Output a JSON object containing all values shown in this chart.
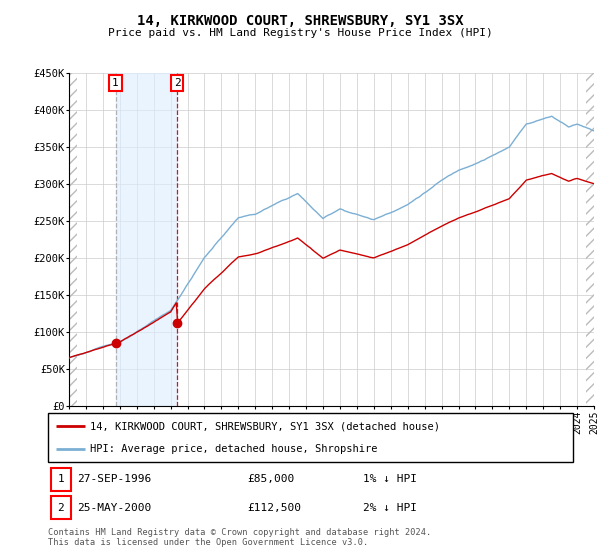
{
  "title1": "14, KIRKWOOD COURT, SHREWSBURY, SY1 3SX",
  "title2": "Price paid vs. HM Land Registry's House Price Index (HPI)",
  "ylim": [
    0,
    450000
  ],
  "yticks": [
    0,
    50000,
    100000,
    150000,
    200000,
    250000,
    300000,
    350000,
    400000,
    450000
  ],
  "ytick_labels": [
    "£0",
    "£50K",
    "£100K",
    "£150K",
    "£200K",
    "£250K",
    "£300K",
    "£350K",
    "£400K",
    "£450K"
  ],
  "sale1_date": 1996.75,
  "sale1_price": 85000,
  "sale2_date": 2000.39,
  "sale2_price": 112500,
  "hpi_line_color": "#7bafd4",
  "price_line_color": "#cc0000",
  "grid_color": "#cccccc",
  "shade_color": "#ddeeff",
  "hatch_color": "#bbbbbb",
  "legend_line1": "14, KIRKWOOD COURT, SHREWSBURY, SY1 3SX (detached house)",
  "legend_line2": "HPI: Average price, detached house, Shropshire",
  "footer": "Contains HM Land Registry data © Crown copyright and database right 2024.\nThis data is licensed under the Open Government Licence v3.0.",
  "xmin": 1994,
  "xmax": 2025,
  "sale1_vline_color": "#aaaaaa",
  "sale2_vline_color": "#cc0000"
}
